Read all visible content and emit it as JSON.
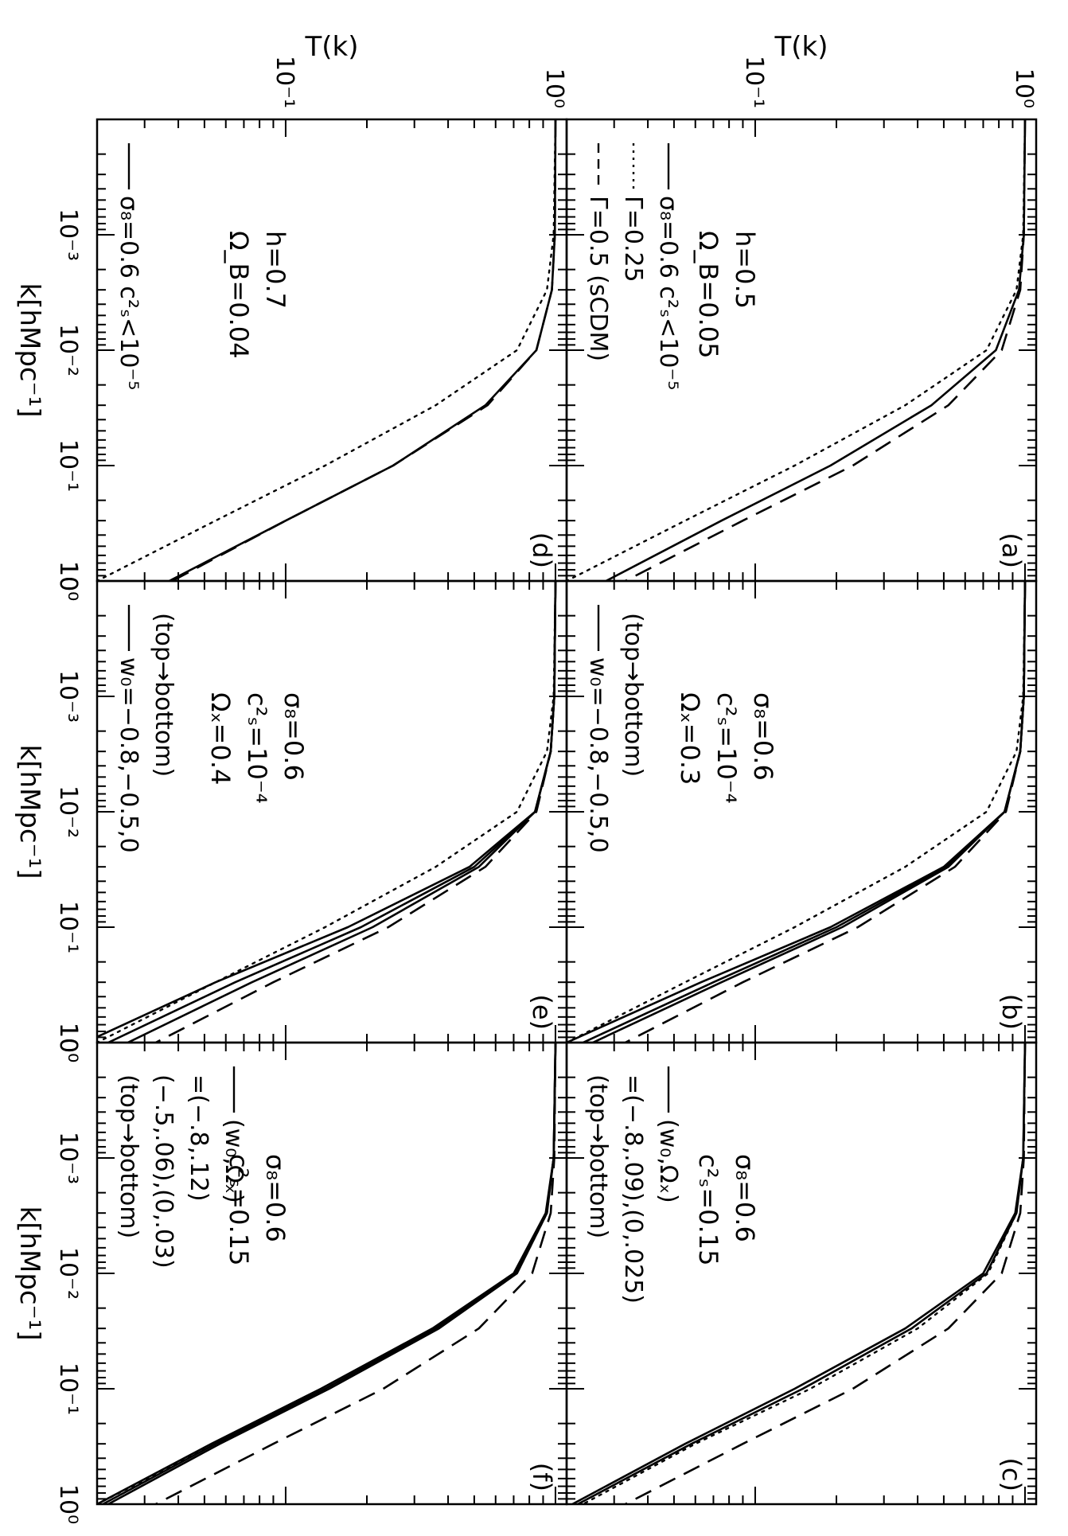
{
  "figure": {
    "ylabel": "T(k)",
    "xlabel": "k[hMpc⁻¹]",
    "xticklabels": [
      "10⁻³",
      "10⁻²",
      "10⁻¹",
      "10⁰"
    ],
    "yticklabels": [
      "10⁰",
      "10⁻¹"
    ],
    "start_tick": "10⁰"
  },
  "chart_data": [
    {
      "type": "line",
      "panel": "(a)",
      "xscale": "log",
      "yscale": "log",
      "xlim": [
        0.0001,
        1
      ],
      "ylim": [
        0.02,
        1.1
      ],
      "xlabel": "k[hMpc⁻¹]",
      "ylabel": "T(k)",
      "annotations": [
        "h=0.5",
        "Ω_B=0.05"
      ],
      "legend": [
        {
          "style": "solid",
          "text": "σ₈=0.6  c²ₛ<10⁻⁵"
        },
        {
          "style": "dotted",
          "text": "Γ=0.25"
        },
        {
          "style": "dashed",
          "text": "Γ=0.5  (sCDM)"
        }
      ],
      "series": [
        {
          "style": "solid",
          "x": [
            0.0001,
            0.001,
            0.003,
            0.01,
            0.03,
            0.1,
            0.3,
            1
          ],
          "y": [
            1.0,
            0.99,
            0.95,
            0.78,
            0.45,
            0.19,
            0.075,
            0.028
          ]
        },
        {
          "style": "dotted",
          "x": [
            0.0001,
            0.001,
            0.003,
            0.01,
            0.03,
            0.1,
            0.3,
            1
          ],
          "y": [
            1.0,
            0.985,
            0.93,
            0.72,
            0.36,
            0.14,
            0.055,
            0.02
          ]
        },
        {
          "style": "dashed",
          "x": [
            0.0001,
            0.001,
            0.003,
            0.01,
            0.03,
            0.1,
            0.3,
            1
          ],
          "y": [
            1.0,
            0.99,
            0.96,
            0.82,
            0.52,
            0.23,
            0.09,
            0.033
          ]
        }
      ]
    },
    {
      "type": "line",
      "panel": "(b)",
      "xscale": "log",
      "yscale": "log",
      "xlim": [
        0.0001,
        1
      ],
      "ylim": [
        0.02,
        1.1
      ],
      "xlabel": "k[hMpc⁻¹]",
      "annotations": [
        "σ₈=0.6",
        "c²ₛ=10⁻⁴",
        "Ωₓ=0.3"
      ],
      "legend": [
        {
          "style": "none",
          "text": "(top→bottom)"
        },
        {
          "style": "solid",
          "text": "w₀=−0.8,−0.5,0"
        }
      ],
      "series": [
        {
          "style": "solid",
          "x": [
            0.0001,
            0.001,
            0.003,
            0.01,
            0.03,
            0.1,
            0.3,
            1
          ],
          "y": [
            1.0,
            0.99,
            0.96,
            0.84,
            0.52,
            0.21,
            0.075,
            0.025
          ]
        },
        {
          "style": "solid",
          "x": [
            0.0001,
            0.001,
            0.003,
            0.01,
            0.03,
            0.1,
            0.3,
            1
          ],
          "y": [
            1.0,
            0.99,
            0.96,
            0.84,
            0.51,
            0.2,
            0.07,
            0.023
          ]
        },
        {
          "style": "solid",
          "x": [
            0.0001,
            0.001,
            0.003,
            0.01,
            0.03,
            0.1,
            0.3,
            1
          ],
          "y": [
            1.0,
            0.99,
            0.96,
            0.84,
            0.5,
            0.19,
            0.063,
            0.02
          ]
        },
        {
          "style": "dotted",
          "x": [
            0.0001,
            0.001,
            0.003,
            0.01,
            0.03,
            0.1,
            0.3,
            1
          ],
          "y": [
            1.0,
            0.985,
            0.93,
            0.72,
            0.36,
            0.14,
            0.055,
            0.02
          ]
        },
        {
          "style": "dashed",
          "x": [
            0.0001,
            0.001,
            0.003,
            0.01,
            0.03,
            0.1,
            0.3,
            1
          ],
          "y": [
            1.0,
            0.99,
            0.96,
            0.85,
            0.55,
            0.24,
            0.09,
            0.033
          ]
        }
      ]
    },
    {
      "type": "line",
      "panel": "(c)",
      "xscale": "log",
      "yscale": "log",
      "xlim": [
        0.0001,
        1
      ],
      "ylim": [
        0.02,
        1.1
      ],
      "xlabel": "k[hMpc⁻¹]",
      "annotations": [
        "σ₈=0.6",
        "c²ₛ=0.15"
      ],
      "legend": [
        {
          "style": "solid",
          "text": "(w₀,Ωₓ)"
        },
        {
          "style": "none",
          "text": "=(−.8,.09),(0,.025)"
        },
        {
          "style": "none",
          "text": "(top→bottom)"
        }
      ],
      "series": [
        {
          "style": "solid",
          "x": [
            0.0001,
            0.001,
            0.003,
            0.01,
            0.03,
            0.1,
            0.3,
            1
          ],
          "y": [
            1.0,
            0.985,
            0.93,
            0.72,
            0.38,
            0.15,
            0.058,
            0.022
          ]
        },
        {
          "style": "solid",
          "x": [
            0.0001,
            0.001,
            0.003,
            0.01,
            0.03,
            0.1,
            0.3,
            1
          ],
          "y": [
            1.0,
            0.985,
            0.92,
            0.7,
            0.36,
            0.14,
            0.055,
            0.021
          ]
        },
        {
          "style": "dotted",
          "x": [
            0.0001,
            0.001,
            0.003,
            0.01,
            0.03,
            0.1,
            0.3,
            1
          ],
          "y": [
            1.0,
            0.985,
            0.93,
            0.73,
            0.4,
            0.16,
            0.06,
            0.023
          ]
        },
        {
          "style": "dashed",
          "x": [
            0.0001,
            0.001,
            0.003,
            0.01,
            0.03,
            0.1,
            0.3,
            1
          ],
          "y": [
            1.0,
            0.99,
            0.96,
            0.82,
            0.52,
            0.23,
            0.09,
            0.033
          ]
        }
      ]
    },
    {
      "type": "line",
      "panel": "(d)",
      "xscale": "log",
      "yscale": "log",
      "xlim": [
        0.0001,
        1
      ],
      "ylim": [
        0.02,
        1.1
      ],
      "xlabel": "k[hMpc⁻¹]",
      "ylabel": "T(k)",
      "annotations": [
        "h=0.7",
        "Ω_B=0.04"
      ],
      "legend": [
        {
          "style": "solid",
          "text": "σ₈=0.6  c²ₛ<10⁻⁵"
        }
      ],
      "series": [
        {
          "style": "solid",
          "x": [
            0.0001,
            0.001,
            0.003,
            0.01,
            0.03,
            0.1,
            0.3,
            1
          ],
          "y": [
            1.0,
            0.995,
            0.97,
            0.85,
            0.55,
            0.25,
            0.1,
            0.037
          ]
        },
        {
          "style": "dashed",
          "x": [
            0.0001,
            0.001,
            0.003,
            0.01,
            0.03,
            0.1,
            0.3,
            1
          ],
          "y": [
            1.0,
            0.995,
            0.97,
            0.85,
            0.56,
            0.25,
            0.1,
            0.038
          ]
        },
        {
          "style": "dotted",
          "x": [
            0.0001,
            0.001,
            0.003,
            0.01,
            0.03,
            0.1,
            0.3,
            1
          ],
          "y": [
            1.0,
            0.985,
            0.93,
            0.72,
            0.36,
            0.14,
            0.055,
            0.02
          ]
        }
      ]
    },
    {
      "type": "line",
      "panel": "(e)",
      "xscale": "log",
      "yscale": "log",
      "xlim": [
        0.0001,
        1
      ],
      "ylim": [
        0.02,
        1.1
      ],
      "xlabel": "k[hMpc⁻¹]",
      "annotations": [
        "σ₈=0.6",
        "c²ₛ=10⁻⁴",
        "Ωₓ=0.4"
      ],
      "legend": [
        {
          "style": "none",
          "text": "(top→bottom)"
        },
        {
          "style": "solid",
          "text": "w₀=−0.8,−0.5,0"
        }
      ],
      "series": [
        {
          "style": "solid",
          "x": [
            0.0001,
            0.001,
            0.003,
            0.01,
            0.03,
            0.1,
            0.3,
            1
          ],
          "y": [
            1.0,
            0.99,
            0.96,
            0.84,
            0.52,
            0.21,
            0.075,
            0.026
          ]
        },
        {
          "style": "solid",
          "x": [
            0.0001,
            0.001,
            0.003,
            0.01,
            0.03,
            0.1,
            0.3,
            1
          ],
          "y": [
            1.0,
            0.99,
            0.96,
            0.84,
            0.5,
            0.19,
            0.065,
            0.022
          ]
        },
        {
          "style": "solid",
          "x": [
            0.0001,
            0.001,
            0.003,
            0.01,
            0.03,
            0.1,
            0.3,
            1
          ],
          "y": [
            1.0,
            0.99,
            0.96,
            0.84,
            0.48,
            0.17,
            0.055,
            0.018
          ]
        },
        {
          "style": "dotted",
          "x": [
            0.0001,
            0.001,
            0.003,
            0.01,
            0.03,
            0.1,
            0.3,
            1
          ],
          "y": [
            1.0,
            0.985,
            0.93,
            0.72,
            0.36,
            0.14,
            0.055,
            0.02
          ]
        },
        {
          "style": "dashed",
          "x": [
            0.0001,
            0.001,
            0.003,
            0.01,
            0.03,
            0.1,
            0.3,
            1
          ],
          "y": [
            1.0,
            0.99,
            0.96,
            0.85,
            0.55,
            0.24,
            0.09,
            0.033
          ]
        }
      ]
    },
    {
      "type": "line",
      "panel": "(f)",
      "xscale": "log",
      "yscale": "log",
      "xlim": [
        0.0001,
        1
      ],
      "ylim": [
        0.02,
        1.1
      ],
      "xlabel": "k[hMpc⁻¹]",
      "annotations": [
        "σ₈=0.6",
        "c²ₛ=0.15"
      ],
      "legend": [
        {
          "style": "solid",
          "text": "(w₀,Ωₓ)"
        },
        {
          "style": "none",
          "text": "=(−.8,.12)"
        },
        {
          "style": "none",
          "text": "(−.5,.06),(0,.03)"
        },
        {
          "style": "none",
          "text": "(top→bottom)"
        }
      ],
      "series": [
        {
          "style": "solid",
          "x": [
            0.0001,
            0.001,
            0.003,
            0.01,
            0.03,
            0.1,
            0.3,
            1
          ],
          "y": [
            1.0,
            0.985,
            0.93,
            0.72,
            0.37,
            0.145,
            0.057,
            0.022
          ]
        },
        {
          "style": "solid",
          "x": [
            0.0001,
            0.001,
            0.003,
            0.01,
            0.03,
            0.1,
            0.3,
            1
          ],
          "y": [
            1.0,
            0.985,
            0.925,
            0.71,
            0.36,
            0.14,
            0.055,
            0.021
          ]
        },
        {
          "style": "solid",
          "x": [
            0.0001,
            0.001,
            0.003,
            0.01,
            0.03,
            0.1,
            0.3,
            1
          ],
          "y": [
            1.0,
            0.985,
            0.92,
            0.7,
            0.35,
            0.135,
            0.053,
            0.02
          ]
        },
        {
          "style": "dotted",
          "x": [
            0.0001,
            0.001,
            0.003,
            0.01,
            0.03,
            0.1,
            0.3,
            1
          ],
          "y": [
            1.0,
            0.985,
            0.93,
            0.72,
            0.36,
            0.14,
            0.055,
            0.02
          ]
        },
        {
          "style": "dashed",
          "x": [
            0.0001,
            0.001,
            0.003,
            0.01,
            0.03,
            0.1,
            0.3,
            1
          ],
          "y": [
            1.0,
            0.99,
            0.96,
            0.82,
            0.52,
            0.23,
            0.09,
            0.033
          ]
        }
      ]
    }
  ]
}
